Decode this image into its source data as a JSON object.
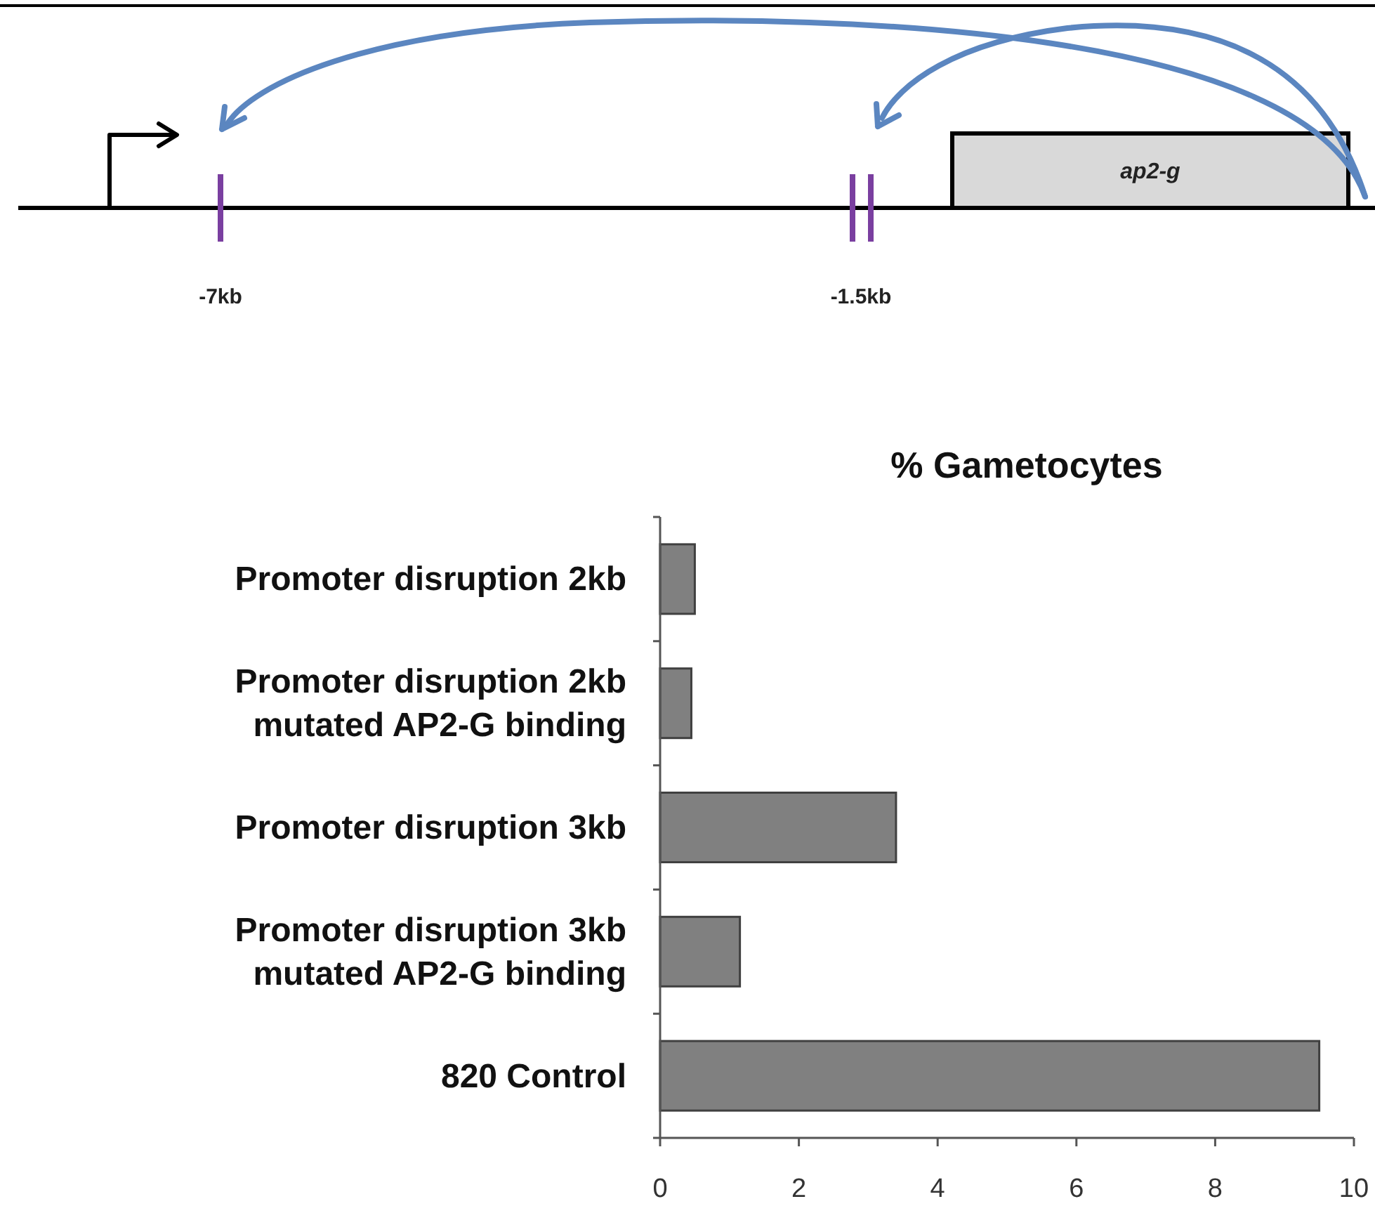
{
  "chart_data": {
    "type": "bar",
    "orientation": "horizontal",
    "title": "% Gametocytes",
    "categories": [
      "Promoter disruption 2kb",
      "Promoter disruption 2kb\nmutated AP2-G binding",
      "Promoter disruption 3kb",
      "Promoter disruption 3kb\nmutated AP2-G binding",
      "820 Control"
    ],
    "values": [
      0.5,
      0.45,
      3.4,
      1.15,
      9.5
    ],
    "color": "#808080",
    "xlim": [
      0,
      10
    ],
    "xticks": [
      0,
      2,
      4,
      6,
      8,
      10
    ],
    "grid": false,
    "annotations": [
      "-7kb",
      "-1.5kb",
      "ap2-g"
    ]
  }
}
